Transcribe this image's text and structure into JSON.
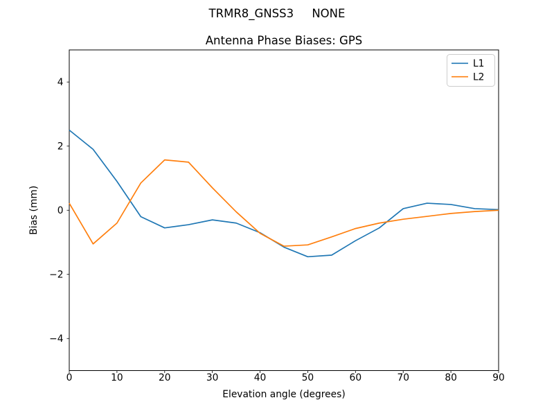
{
  "figure": {
    "suptitle": "TRMR8_GNSS3     NONE",
    "title": "Antenna Phase Biases: GPS"
  },
  "chart_data": {
    "type": "line",
    "suptitle": "TRMR8_GNSS3     NONE",
    "title": "Antenna Phase Biases: GPS",
    "xlabel": "Elevation angle (degrees)",
    "ylabel": "Bias (mm)",
    "xlim": [
      0,
      90
    ],
    "ylim": [
      -5,
      5
    ],
    "xticks": [
      0,
      10,
      20,
      30,
      40,
      50,
      60,
      70,
      80,
      90
    ],
    "xtick_labels": [
      "0",
      "10",
      "20",
      "30",
      "40",
      "50",
      "60",
      "70",
      "80",
      "90"
    ],
    "yticks": [
      4,
      2,
      0,
      -2,
      -4
    ],
    "ytick_labels": [
      "4",
      "2",
      "0",
      "−2",
      "−4"
    ],
    "grid": false,
    "legend": {
      "position": "upper right",
      "entries": [
        {
          "label": "L1",
          "color": "#1f77b4"
        },
        {
          "label": "L2",
          "color": "#ff7f0e"
        }
      ]
    },
    "x": [
      0,
      5,
      10,
      15,
      20,
      25,
      30,
      35,
      40,
      45,
      50,
      55,
      60,
      65,
      70,
      75,
      80,
      85,
      90
    ],
    "series": [
      {
        "name": "L1",
        "color": "#1f77b4",
        "values": [
          2.5,
          1.9,
          0.9,
          -0.2,
          -0.55,
          -0.45,
          -0.3,
          -0.4,
          -0.7,
          -1.15,
          -1.45,
          -1.4,
          -0.95,
          -0.55,
          0.05,
          0.22,
          0.18,
          0.05,
          0.02
        ]
      },
      {
        "name": "L2",
        "color": "#ff7f0e",
        "values": [
          0.22,
          -1.05,
          -0.4,
          0.85,
          1.57,
          1.5,
          0.7,
          -0.05,
          -0.72,
          -1.12,
          -1.08,
          -0.83,
          -0.57,
          -0.4,
          -0.28,
          -0.19,
          -0.1,
          -0.04,
          0.0
        ]
      }
    ],
    "colors": {
      "background": "#ffffff",
      "axis": "#000000",
      "legend_border": "#cccccc"
    }
  }
}
